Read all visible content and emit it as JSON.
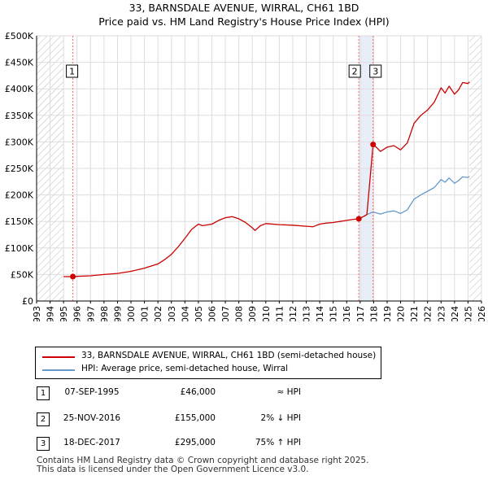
{
  "header": {
    "title": "33, BARNSDALE AVENUE, WIRRAL, CH61 1BD",
    "subtitle": "Price paid vs. HM Land Registry's House Price Index (HPI)"
  },
  "legend": {
    "property": "33, BARNSDALE AVENUE, WIRRAL, CH61 1BD (semi-detached house)",
    "hpi": "HPI: Average price, semi-detached house, Wirral"
  },
  "sales": [
    {
      "num": "1",
      "date": "07-SEP-1995",
      "price": "£46,000",
      "hpi": "≈ HPI"
    },
    {
      "num": "2",
      "date": "25-NOV-2016",
      "price": "£155,000",
      "hpi": "2% ↓ HPI"
    },
    {
      "num": "3",
      "date": "18-DEC-2017",
      "price": "£295,000",
      "hpi": "75% ↑ HPI"
    }
  ],
  "footer": {
    "line1": "Contains HM Land Registry data © Crown copyright and database right 2025.",
    "line2": "This data is licensed under the Open Government Licence v3.0."
  },
  "colors": {
    "property": "#cc0000",
    "hpi": "#6699cc",
    "sale_line": "#ff6666",
    "grid": "#dddddd",
    "hatch": "#bbbbbb",
    "band": "#e8eef8"
  },
  "chart_data": {
    "type": "line",
    "title": "33, BARNSDALE AVENUE, WIRRAL, CH61 1BD",
    "subtitle": "Price paid vs. HM Land Registry's House Price Index (HPI)",
    "xlabel": "",
    "ylabel": "",
    "xlim": [
      1993,
      2026
    ],
    "ylim": [
      0,
      500000
    ],
    "x_ticks": [
      "1993",
      "1994",
      "1995",
      "1996",
      "1997",
      "1998",
      "1999",
      "2000",
      "2001",
      "2002",
      "2003",
      "2004",
      "2005",
      "2006",
      "2007",
      "2008",
      "2009",
      "2010",
      "2011",
      "2012",
      "2013",
      "2014",
      "2015",
      "2016",
      "2017",
      "2018",
      "2019",
      "2020",
      "2021",
      "2022",
      "2023",
      "2024",
      "2025",
      "2026"
    ],
    "y_ticks": [
      {
        "value": 0,
        "label": "£0"
      },
      {
        "value": 50000,
        "label": "£50K"
      },
      {
        "value": 100000,
        "label": "£100K"
      },
      {
        "value": 150000,
        "label": "£150K"
      },
      {
        "value": 200000,
        "label": "£200K"
      },
      {
        "value": 250000,
        "label": "£250K"
      },
      {
        "value": 300000,
        "label": "£300K"
      },
      {
        "value": 350000,
        "label": "£350K"
      },
      {
        "value": 400000,
        "label": "£400K"
      },
      {
        "value": 450000,
        "label": "£450K"
      },
      {
        "value": 500000,
        "label": "£500K"
      }
    ],
    "grid": true,
    "data_start": 1995.0,
    "data_end": 2025.1,
    "series": [
      {
        "name": "33, BARNSDALE AVENUE, WIRRAL, CH61 1BD (semi-detached house)",
        "color": "#cc0000",
        "x": [
          1995.0,
          1995.69,
          1996.0,
          1997.0,
          1998.0,
          1999.0,
          2000.0,
          2001.0,
          2002.0,
          2002.5,
          2003.0,
          2003.5,
          2004.0,
          2004.5,
          2005.0,
          2005.3,
          2006.0,
          2006.5,
          2007.0,
          2007.5,
          2008.0,
          2008.5,
          2009.0,
          2009.2,
          2009.6,
          2010.0,
          2011.0,
          2012.0,
          2013.0,
          2013.5,
          2014.0,
          2014.5,
          2015.0,
          2015.5,
          2016.0,
          2016.5,
          2016.9,
          2017.3,
          2017.5,
          2017.96,
          2018.2,
          2018.5,
          2019.0,
          2019.5,
          2020.0,
          2020.5,
          2021.0,
          2021.5,
          2022.0,
          2022.5,
          2023.0,
          2023.3,
          2023.6,
          2024.0,
          2024.3,
          2024.6,
          2025.0,
          2025.1
        ],
        "y": [
          46000,
          46000,
          46500,
          47500,
          50000,
          52000,
          56000,
          62000,
          70000,
          78000,
          88000,
          102000,
          118000,
          135000,
          145000,
          142000,
          145000,
          152000,
          157000,
          159000,
          155000,
          148000,
          138000,
          133000,
          142000,
          146000,
          144000,
          143000,
          141000,
          140000,
          145000,
          147000,
          148000,
          150000,
          152000,
          154000,
          155000,
          160000,
          163000,
          295000,
          290000,
          282000,
          290000,
          293000,
          285000,
          298000,
          335000,
          350000,
          360000,
          375000,
          402000,
          392000,
          405000,
          390000,
          398000,
          412000,
          410000,
          413000
        ]
      },
      {
        "name": "HPI: Average price, semi-detached house, Wirral",
        "color": "#6699cc",
        "x": [
          2016.9,
          2017.3,
          2017.5,
          2017.96,
          2018.5,
          2019.0,
          2019.5,
          2020.0,
          2020.5,
          2021.0,
          2021.5,
          2022.0,
          2022.5,
          2023.0,
          2023.3,
          2023.6,
          2024.0,
          2024.3,
          2024.6,
          2025.0,
          2025.1
        ],
        "y": [
          155000,
          160000,
          163000,
          168000,
          164000,
          168000,
          170000,
          165000,
          172000,
          192000,
          200000,
          207000,
          214000,
          229000,
          224000,
          232000,
          222000,
          227000,
          234000,
          233000,
          235000
        ]
      }
    ],
    "sales": [
      {
        "label": "1",
        "x": 1995.69,
        "y": 46000
      },
      {
        "label": "2",
        "x": 2016.9,
        "y": 155000
      },
      {
        "label": "3",
        "x": 2017.96,
        "y": 295000
      }
    ]
  }
}
